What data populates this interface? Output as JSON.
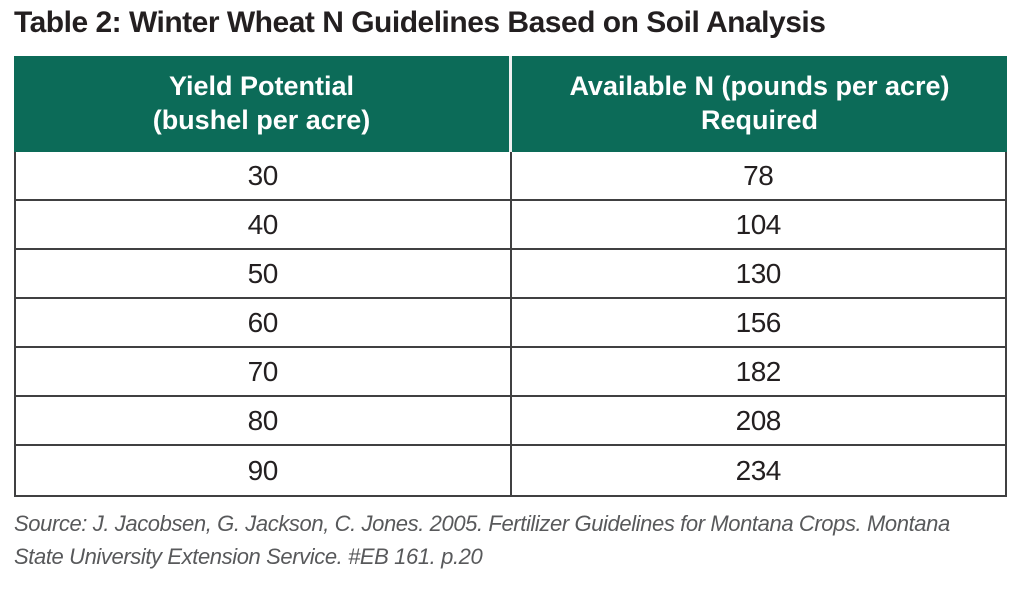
{
  "page": {
    "title": "Table 2: Winter Wheat N Guidelines Based on Soil Analysis"
  },
  "table": {
    "columns": [
      {
        "line1": "Yield Potential",
        "line2": "(bushel per acre)"
      },
      {
        "line1": "Available N (pounds per acre)",
        "line2": "Required"
      }
    ],
    "rows": [
      [
        "30",
        "78"
      ],
      [
        "40",
        "104"
      ],
      [
        "50",
        "130"
      ],
      [
        "60",
        "156"
      ],
      [
        "70",
        "182"
      ],
      [
        "80",
        "208"
      ],
      [
        "90",
        "234"
      ]
    ]
  },
  "source": {
    "line1": "Source: J. Jacobsen, G. Jackson, C. Jones. 2005. Fertilizer Guidelines for Montana Crops. Montana",
    "line2": "State University Extension Service. #EB 161. p.20"
  },
  "colors": {
    "header_bg": "#0c6b58",
    "header_text": "#ffffff",
    "body_border": "#404041",
    "title_text": "#231f20",
    "source_text": "#58595b"
  },
  "chart_data": {
    "type": "table",
    "title": "Table 2: Winter Wheat N Guidelines Based on Soil Analysis",
    "columns": [
      "Yield Potential (bushel per acre)",
      "Available N (pounds per acre) Required"
    ],
    "rows": [
      [
        30,
        78
      ],
      [
        40,
        104
      ],
      [
        50,
        130
      ],
      [
        60,
        156
      ],
      [
        70,
        182
      ],
      [
        80,
        208
      ],
      [
        90,
        234
      ]
    ]
  }
}
